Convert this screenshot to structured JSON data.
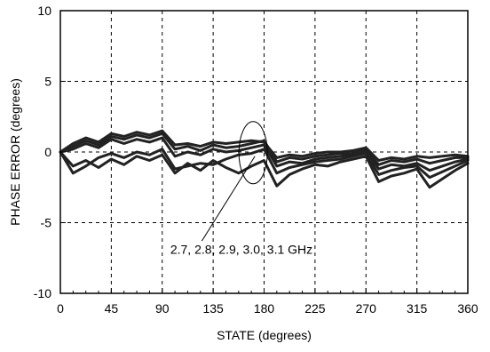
{
  "chart_data": {
    "type": "line",
    "xlabel": "STATE (degrees)",
    "ylabel": "PHASE ERROR  (degrees)",
    "xlim": [
      0,
      360
    ],
    "ylim": [
      -10,
      10
    ],
    "xticks": [
      0,
      45,
      90,
      135,
      180,
      225,
      270,
      315,
      360
    ],
    "yticks": [
      -10,
      -5,
      0,
      5,
      10
    ],
    "grid": true,
    "x": [
      0,
      11.25,
      22.5,
      33.75,
      45,
      56.25,
      67.5,
      78.75,
      90,
      101.25,
      112.5,
      123.75,
      135,
      146.25,
      157.5,
      168.75,
      180,
      191.25,
      202.5,
      213.75,
      225,
      236.25,
      247.5,
      258.75,
      270,
      281.25,
      292.5,
      303.75,
      315,
      326.25,
      337.5,
      348.75,
      360
    ],
    "series": [
      {
        "values": [
          0.0,
          0.6,
          1.0,
          0.7,
          1.3,
          1.1,
          1.4,
          1.2,
          1.5,
          0.5,
          0.6,
          0.4,
          0.7,
          0.6,
          0.7,
          0.8,
          0.7,
          -0.4,
          -0.2,
          -0.3,
          -0.1,
          0.0,
          0.0,
          0.1,
          0.3,
          -0.6,
          -0.4,
          -0.5,
          -0.3,
          -0.4,
          -0.3,
          -0.2,
          -0.3
        ]
      },
      {
        "values": [
          0.0,
          0.4,
          0.8,
          0.5,
          1.1,
          0.9,
          1.2,
          1.0,
          1.3,
          0.2,
          0.4,
          0.1,
          0.5,
          0.3,
          0.4,
          0.6,
          0.8,
          -0.7,
          -0.4,
          -0.5,
          -0.3,
          -0.2,
          -0.1,
          -0.1,
          0.2,
          -0.9,
          -0.6,
          -0.7,
          -0.5,
          -0.8,
          -0.6,
          -0.4,
          -0.4
        ]
      },
      {
        "values": [
          0.0,
          0.2,
          0.6,
          0.3,
          0.9,
          0.6,
          0.9,
          0.7,
          1.0,
          -0.3,
          0.0,
          -0.2,
          0.2,
          0.0,
          0.1,
          0.3,
          0.5,
          -1.0,
          -0.7,
          -0.8,
          -0.5,
          -0.4,
          -0.3,
          -0.2,
          0.1,
          -1.2,
          -0.9,
          -1.0,
          -0.8,
          -1.3,
          -1.0,
          -0.7,
          -0.5
        ]
      },
      {
        "values": [
          0.0,
          -1.5,
          -1.0,
          -0.4,
          -0.1,
          -0.4,
          0.0,
          -0.2,
          0.2,
          -1.2,
          -1.0,
          -0.8,
          -0.9,
          -0.5,
          -0.2,
          -0.1,
          0.2,
          -1.5,
          -1.1,
          -0.9,
          -0.7,
          -0.6,
          -0.5,
          -0.3,
          -0.1,
          -1.6,
          -1.3,
          -1.1,
          -1.0,
          -1.8,
          -1.4,
          -1.0,
          -0.6
        ]
      },
      {
        "values": [
          0.0,
          -1.0,
          -0.6,
          -1.1,
          -0.5,
          -0.9,
          -0.3,
          -0.6,
          -0.2,
          -1.5,
          -0.8,
          -1.3,
          -0.6,
          -1.1,
          -1.5,
          -1.0,
          -0.6,
          -2.4,
          -1.6,
          -1.2,
          -0.9,
          -1.0,
          -0.7,
          -0.5,
          -0.3,
          -2.1,
          -1.7,
          -1.5,
          -1.2,
          -2.5,
          -1.9,
          -1.3,
          -0.8
        ]
      }
    ],
    "annotations": [
      {
        "text": "2.7, 2.8, 2.9, 3.0, 3.1  GHz",
        "x": 160,
        "y": -7.2,
        "arrow_to": [
          168.75,
          -0.3
        ]
      }
    ]
  }
}
